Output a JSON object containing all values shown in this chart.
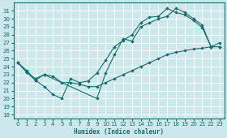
{
  "bg_color": "#cce8ec",
  "grid_color": "#b8d8dc",
  "line_color": "#1a6b6b",
  "xlim": [
    -0.5,
    23.5
  ],
  "ylim": [
    17.5,
    32.0
  ],
  "xticks": [
    0,
    1,
    2,
    3,
    4,
    5,
    6,
    7,
    8,
    9,
    10,
    11,
    12,
    13,
    14,
    15,
    16,
    17,
    18,
    19,
    20,
    21,
    22,
    23
  ],
  "yticks": [
    18,
    19,
    20,
    21,
    22,
    23,
    24,
    25,
    26,
    27,
    28,
    29,
    30,
    31
  ],
  "xlabel": "Humidex (Indice chaleur)",
  "line1_x": [
    0,
    1,
    2,
    3,
    9,
    10,
    11,
    12,
    13,
    14,
    15,
    16,
    17,
    18,
    19,
    20,
    21,
    22,
    23
  ],
  "line1_y": [
    24.5,
    23.3,
    22.5,
    23.0,
    20.0,
    23.2,
    25.5,
    27.5,
    27.2,
    29.0,
    29.5,
    30.0,
    30.3,
    31.3,
    30.8,
    30.0,
    29.2,
    26.5,
    26.5
  ],
  "line2_x": [
    0,
    1,
    2,
    3,
    4,
    5,
    6,
    7,
    8,
    9,
    10,
    11,
    12,
    13,
    14,
    15,
    16,
    17,
    18,
    19,
    20,
    21,
    22,
    23
  ],
  "line2_y": [
    24.5,
    23.3,
    22.3,
    21.5,
    20.5,
    20.0,
    22.5,
    22.0,
    22.2,
    23.2,
    24.8,
    26.5,
    27.3,
    28.0,
    29.5,
    30.2,
    30.3,
    31.3,
    30.8,
    30.5,
    29.8,
    28.9,
    26.5,
    27.0
  ],
  "line3_x": [
    0,
    1,
    2,
    3,
    4,
    5,
    6,
    7,
    8,
    9,
    10,
    11,
    12,
    13,
    14,
    15,
    16,
    17,
    18,
    19,
    20,
    21,
    22,
    23
  ],
  "line3_y": [
    24.5,
    23.5,
    22.3,
    23.0,
    22.8,
    22.0,
    22.0,
    21.8,
    21.5,
    21.5,
    22.0,
    22.5,
    23.0,
    23.5,
    24.0,
    24.5,
    25.0,
    25.5,
    25.8,
    26.0,
    26.2,
    26.3,
    26.5,
    26.5
  ],
  "tick_fontsize": 5.0,
  "xlabel_fontsize": 5.5
}
